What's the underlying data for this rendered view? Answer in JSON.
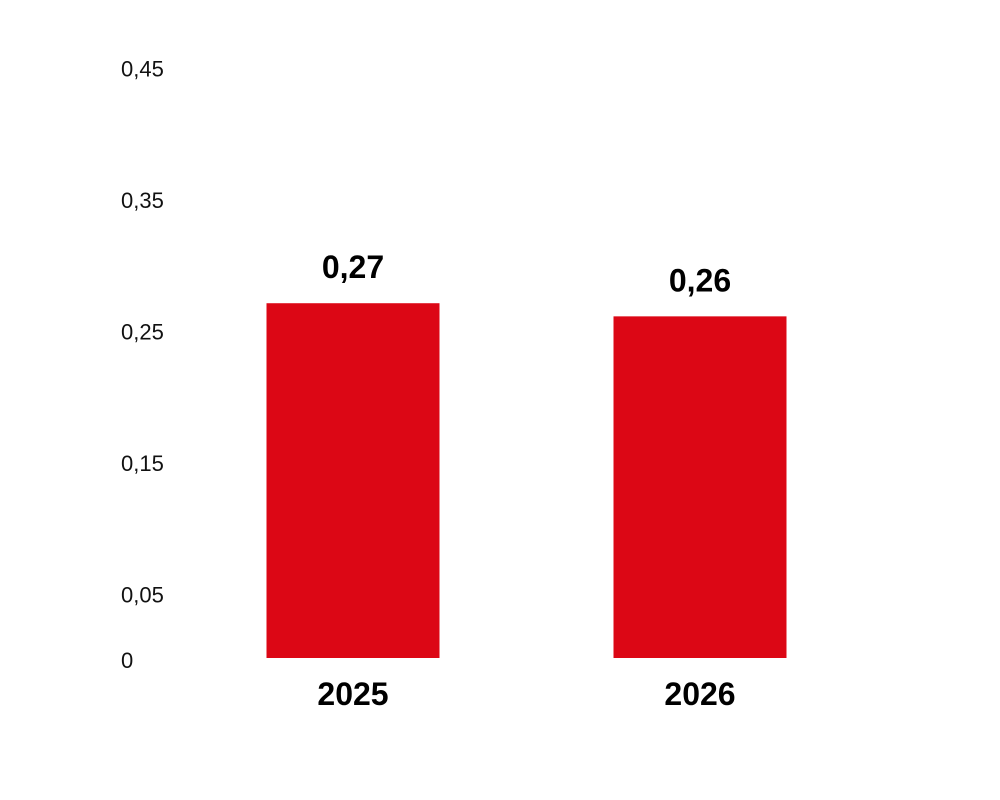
{
  "chart_data": {
    "type": "bar",
    "categories": [
      "2025",
      "2026"
    ],
    "values": [
      0.27,
      0.26
    ],
    "value_labels": [
      "0,27",
      "0,26"
    ],
    "y_ticks": [
      0,
      0.05,
      0.15,
      0.25,
      0.35,
      0.45
    ],
    "y_tick_labels": [
      "0",
      "0,05",
      "0,15",
      "0,25",
      "0,35",
      "0,45"
    ],
    "ylim": [
      0,
      0.45
    ],
    "title": "",
    "xlabel": "",
    "ylabel": "",
    "grid": false,
    "legend": "none",
    "bar_color": "#dc0715"
  }
}
